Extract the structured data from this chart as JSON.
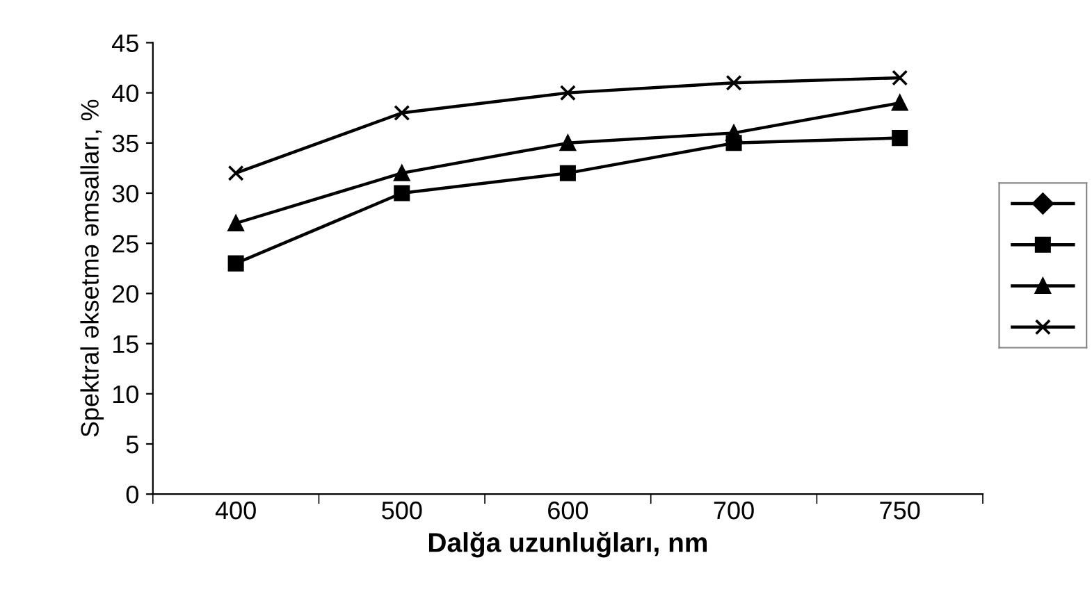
{
  "chart_data": {
    "type": "line",
    "xlabel": "Dalğa uzunluğları, nm",
    "ylabel": "Spektral əksetmə əmsalları, %",
    "categories": [
      "400",
      "500",
      "600",
      "700",
      "750"
    ],
    "series": [
      {
        "color": "#000000",
        "marker": "diamond",
        "values": [
          null,
          null,
          null,
          null,
          null
        ]
      },
      {
        "color": "#000000",
        "marker": "square",
        "values": [
          23,
          30,
          32,
          35,
          35.5
        ]
      },
      {
        "color": "#000000",
        "marker": "triangle",
        "values": [
          27,
          32,
          35,
          36,
          39
        ]
      },
      {
        "color": "#000000",
        "marker": "cross",
        "values": [
          32,
          38,
          40,
          41,
          41.5
        ]
      }
    ],
    "ylim": [
      0,
      45
    ],
    "yticks": [
      0,
      5,
      10,
      15,
      20,
      25,
      30,
      35,
      40,
      45
    ],
    "grid": false,
    "line_style": "solid"
  }
}
